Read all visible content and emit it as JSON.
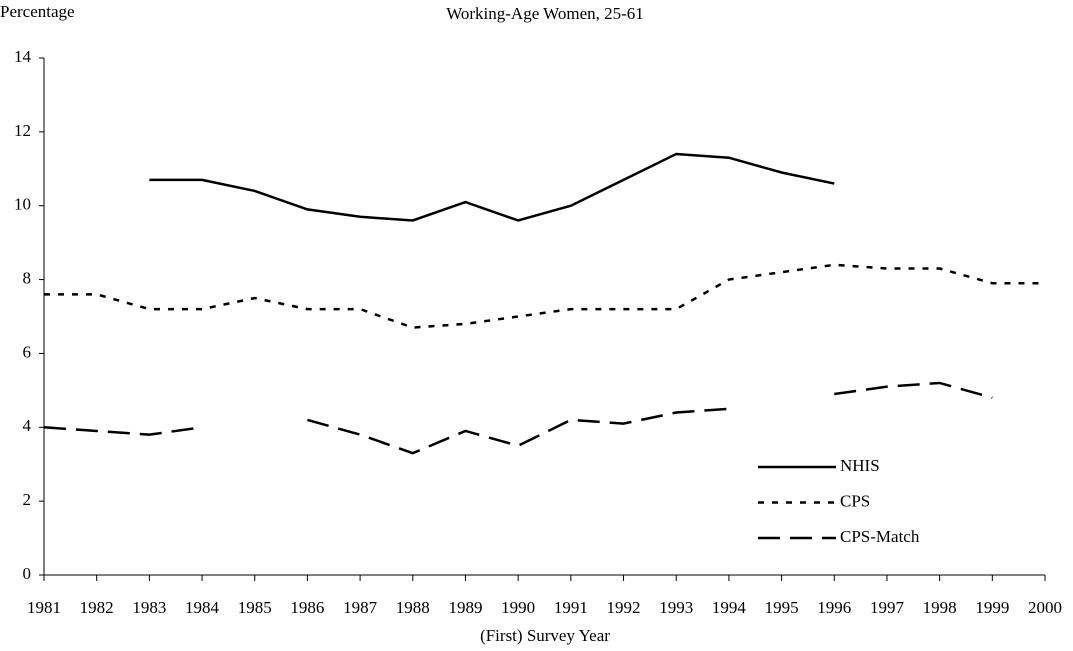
{
  "chart_data": {
    "type": "line",
    "title": "Working-Age Women, 25-61",
    "y_label": "Percentage",
    "x_label": "(First) Survey Year",
    "categories": [
      "1981",
      "1982",
      "1983",
      "1984",
      "1985",
      "1986",
      "1987",
      "1988",
      "1989",
      "1990",
      "1991",
      "1992",
      "1993",
      "1994",
      "1995",
      "1996",
      "1997",
      "1998",
      "1999",
      "2000"
    ],
    "series": [
      {
        "name": "NHIS",
        "color": "#000000",
        "dash": "solid",
        "values": [
          null,
          null,
          10.7,
          10.7,
          10.4,
          9.9,
          9.7,
          9.6,
          10.1,
          9.6,
          10.0,
          10.7,
          11.4,
          11.3,
          10.9,
          10.6,
          null,
          null,
          null,
          null
        ]
      },
      {
        "name": "CPS",
        "color": "#000000",
        "dash": "dotted",
        "values": [
          7.6,
          7.6,
          7.2,
          7.2,
          7.5,
          7.2,
          7.2,
          6.7,
          6.8,
          7.0,
          7.2,
          7.2,
          7.2,
          8.0,
          8.2,
          8.4,
          8.3,
          8.3,
          7.9,
          7.9
        ]
      },
      {
        "name": "CPS-Match",
        "color": "#000000",
        "dash": "dashed",
        "values": [
          4.0,
          3.9,
          3.8,
          4.0,
          null,
          4.2,
          3.8,
          3.3,
          3.9,
          3.5,
          4.2,
          4.1,
          4.4,
          4.5,
          null,
          4.9,
          5.1,
          5.2,
          4.8,
          null
        ]
      }
    ],
    "ylim": [
      0,
      14
    ],
    "yticks": [
      0,
      2,
      4,
      6,
      8,
      10,
      12,
      14
    ],
    "grid": false,
    "legend": "lower right"
  }
}
